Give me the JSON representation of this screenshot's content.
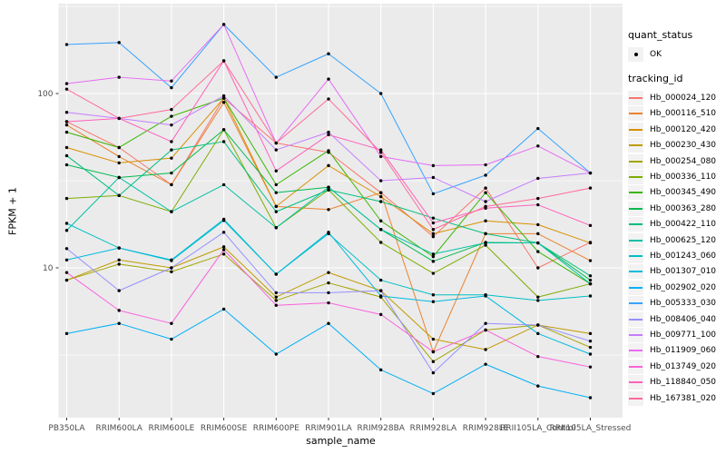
{
  "figure": {
    "background": "#FFFFFF",
    "panel_background": "#EBEBEB",
    "grid_color": "#FFFFFF",
    "tick_label_color": "#4D4D4D",
    "point_color": "#000000"
  },
  "axes": {
    "x_title": "sample_name",
    "y_title": "FPKM + 1",
    "y_tick_labels": [
      "100",
      "10"
    ],
    "y_tick_values": [
      100,
      10
    ]
  },
  "legend": {
    "quant_status_title": "quant_status",
    "quant_status_items": [
      {
        "label": "OK",
        "marker": "point"
      }
    ],
    "tracking_id_title": "tracking_id"
  },
  "chart_data": {
    "type": "line",
    "x_axis": "sample_name",
    "y_axis": "FPKM + 1",
    "y_scale": "log10",
    "ylim": [
      1.4,
      327
    ],
    "grid": true,
    "legend_position": "right",
    "marker": "black point (quant_status = OK)",
    "categories": [
      "PB350LA",
      "RRIM600LA",
      "RRIM600LE",
      "RRIM600SE",
      "RRIM600PE",
      "RRIM901LA",
      "RRIM928BA",
      "RRIM928LA",
      "RRIM928LE",
      "RRII105LA_Control",
      "RRII105LA_Stressed"
    ],
    "series": [
      {
        "name": "Hb_000024_120",
        "color": "#F8766D",
        "values": [
          69,
          49,
          30,
          94,
          52,
          46,
          27,
          15.1,
          28.7,
          10,
          14
        ]
      },
      {
        "name": "Hb_000116_510",
        "color": "#EA8331",
        "values": [
          66,
          43.5,
          30,
          89,
          22.5,
          21.6,
          27,
          3.3,
          15.7,
          15.7,
          11
        ]
      },
      {
        "name": "Hb_000120_420",
        "color": "#D89000",
        "values": [
          49,
          40,
          42.6,
          94,
          22.5,
          38.6,
          25.6,
          15.7,
          18.6,
          17.7,
          13.9
        ]
      },
      {
        "name": "Hb_000230_430",
        "color": "#C09B00",
        "values": [
          8.5,
          11.1,
          10,
          13.2,
          6.8,
          9.4,
          7.4,
          3.9,
          3.4,
          4.7,
          4.2
        ]
      },
      {
        "name": "Hb_000254_080",
        "color": "#A3A500",
        "values": [
          8.5,
          10.5,
          9.5,
          12,
          6.5,
          8.2,
          6.8,
          2.9,
          4.4,
          4.7,
          3.5
        ]
      },
      {
        "name": "Hb_000336_110",
        "color": "#7CAE00",
        "values": [
          25,
          26,
          21,
          62,
          17,
          28,
          14,
          9.3,
          13.5,
          6.8,
          8.1
        ]
      },
      {
        "name": "Hb_000345_490",
        "color": "#39B600",
        "values": [
          60,
          49,
          74,
          94,
          30,
          47,
          18.6,
          11.6,
          27,
          12.4,
          8.1
        ]
      },
      {
        "name": "Hb_000363_280",
        "color": "#00BB4E",
        "values": [
          39,
          33,
          35,
          62,
          27,
          29,
          16.6,
          10.9,
          14,
          13.9,
          8.5
        ]
      },
      {
        "name": "Hb_000422_110",
        "color": "#00BF7D",
        "values": [
          44,
          26,
          47.5,
          53,
          21,
          28,
          24,
          19.3,
          15.7,
          13.9,
          9
        ]
      },
      {
        "name": "Hb_000625_120",
        "color": "#00C1A3",
        "values": [
          16.4,
          33,
          21,
          30,
          17,
          29,
          16.6,
          12,
          13.9,
          13.9,
          8.1
        ]
      },
      {
        "name": "Hb_001243_060",
        "color": "#00BFC4",
        "values": [
          18,
          13,
          11,
          18.7,
          9.2,
          15.7,
          8.5,
          7,
          7,
          6.5,
          6.9
        ]
      },
      {
        "name": "Hb_001307_010",
        "color": "#00BADE",
        "values": [
          11.1,
          13,
          11.1,
          19,
          9.2,
          16,
          6.9,
          6.4,
          6.9,
          4.2,
          3.2
        ]
      },
      {
        "name": "Hb_002902_020",
        "color": "#00B0F6",
        "values": [
          4.2,
          4.8,
          3.9,
          5.8,
          3.2,
          4.8,
          2.6,
          1.9,
          2.8,
          2.1,
          1.8
        ]
      },
      {
        "name": "Hb_005333_030",
        "color": "#35A2FF",
        "values": [
          191,
          196,
          108,
          249,
          124,
          169,
          100,
          26.6,
          34,
          63,
          35
        ]
      },
      {
        "name": "Hb_008406_040",
        "color": "#9590FF",
        "values": [
          12.9,
          7.4,
          10,
          16,
          7.2,
          7.2,
          7.4,
          2.5,
          4.8,
          4.7,
          3.8
        ]
      },
      {
        "name": "Hb_009771_100",
        "color": "#C77CFF",
        "values": [
          78,
          72,
          66,
          97,
          47.5,
          60,
          31.6,
          33,
          24,
          32.6,
          35
        ]
      },
      {
        "name": "Hb_011909_060",
        "color": "#E76BF3",
        "values": [
          114,
          124,
          118,
          249,
          52,
          121,
          43.5,
          38.6,
          39,
          50,
          35
        ]
      },
      {
        "name": "Hb_013749_020",
        "color": "#FA62DB",
        "values": [
          9.4,
          5.7,
          4.8,
          12.7,
          6.1,
          6.3,
          5.4,
          3.3,
          4.4,
          3.1,
          2.7
        ]
      },
      {
        "name": "Hb_118840_050",
        "color": "#FF62BC",
        "values": [
          69,
          72,
          53,
          154,
          36,
          58,
          47.5,
          18.1,
          22,
          23,
          17.5
        ]
      },
      {
        "name": "Hb_167381_020",
        "color": "#FF6A98",
        "values": [
          106,
          72,
          81,
          154,
          52,
          93,
          46,
          16.6,
          22.5,
          25,
          28.7
        ]
      }
    ]
  }
}
